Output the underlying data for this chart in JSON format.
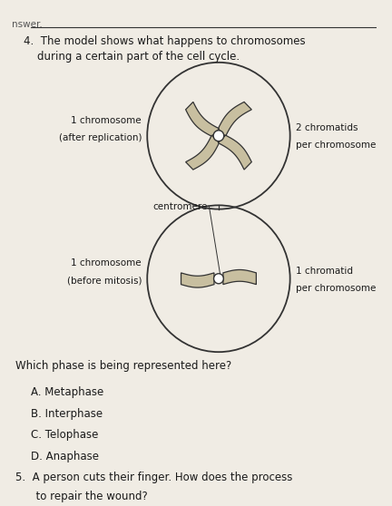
{
  "bg_color": "#d4cfc7",
  "page_color": "#f0ece4",
  "title_q4_line1": "4.  The model shows what happens to chromosomes",
  "title_q4_line2": "    during a certain part of the cell cycle.",
  "label_before_top": "1 chromosome",
  "label_before_bottom": "(before mitosis)",
  "label_after_top": "1 chromosome",
  "label_after_bottom": "(after replication)",
  "label_centromere": "centromere",
  "label_chromatid_count": "2 chromatids",
  "label_chromatid_per": "per chromosome",
  "label_chromat_count": "1 chromatid",
  "label_chromat_per": "per chromosome",
  "question": "Which phase is being represented here?",
  "options": [
    "A. Metaphase",
    "B. Interphase",
    "C. Telophase",
    "D. Anaphase"
  ],
  "q5_text": "5.  A person cuts their finger. How does the process",
  "q5_text2": "      to repair the wound?",
  "margin_text": "nswer.",
  "chrom_fill": "#c8bfa0",
  "chrom_edge": "#333333",
  "circle_edge": "#333333",
  "text_color": "#1a1a1a",
  "line_color": "#333333"
}
